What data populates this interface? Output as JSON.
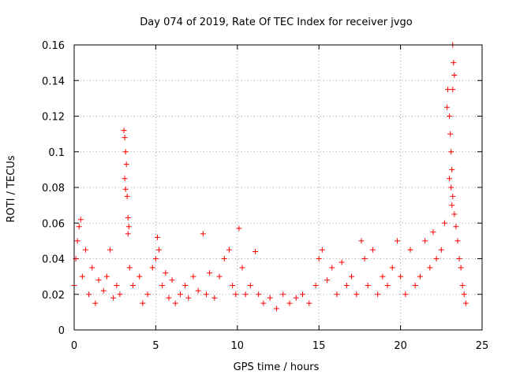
{
  "chart_data": {
    "type": "scatter",
    "title": "Day 074 of 2019, Rate Of TEC Index for receiver jvgo",
    "xlabel": "GPS time / hours",
    "ylabel": "ROTI / TECUs",
    "xlim": [
      0,
      25
    ],
    "ylim": [
      0,
      0.16
    ],
    "xticks": [
      0,
      5,
      10,
      15,
      20,
      25
    ],
    "xtick_labels": [
      "0",
      "5",
      "10",
      "15",
      "20",
      "25"
    ],
    "yticks": [
      0,
      0.02,
      0.04,
      0.06,
      0.08,
      0.1,
      0.12,
      0.14,
      0.16
    ],
    "ytick_labels": [
      "0",
      "0.02",
      "0.04",
      "0.06",
      "0.08",
      "0.1",
      "0.12",
      "0.14",
      "0.16"
    ],
    "grid": true,
    "marker": "+",
    "color": "#ff0000",
    "series": [
      {
        "name": "ROTI",
        "points": [
          [
            0.0,
            0.025
          ],
          [
            0.1,
            0.04
          ],
          [
            0.2,
            0.05
          ],
          [
            0.3,
            0.058
          ],
          [
            0.4,
            0.062
          ],
          [
            0.5,
            0.03
          ],
          [
            0.7,
            0.045
          ],
          [
            0.9,
            0.02
          ],
          [
            1.1,
            0.035
          ],
          [
            1.3,
            0.015
          ],
          [
            1.5,
            0.028
          ],
          [
            1.8,
            0.022
          ],
          [
            2.0,
            0.03
          ],
          [
            2.2,
            0.045
          ],
          [
            2.4,
            0.018
          ],
          [
            2.6,
            0.025
          ],
          [
            2.8,
            0.02
          ],
          [
            3.05,
            0.112
          ],
          [
            3.1,
            0.108
          ],
          [
            3.15,
            0.1
          ],
          [
            3.2,
            0.093
          ],
          [
            3.1,
            0.085
          ],
          [
            3.15,
            0.079
          ],
          [
            3.25,
            0.075
          ],
          [
            3.3,
            0.063
          ],
          [
            3.35,
            0.058
          ],
          [
            3.3,
            0.054
          ],
          [
            3.4,
            0.035
          ],
          [
            3.6,
            0.025
          ],
          [
            4.0,
            0.03
          ],
          [
            4.2,
            0.015
          ],
          [
            4.5,
            0.02
          ],
          [
            4.8,
            0.035
          ],
          [
            5.0,
            0.04
          ],
          [
            5.1,
            0.052
          ],
          [
            5.2,
            0.045
          ],
          [
            5.4,
            0.025
          ],
          [
            5.6,
            0.032
          ],
          [
            5.8,
            0.018
          ],
          [
            6.0,
            0.028
          ],
          [
            6.2,
            0.015
          ],
          [
            6.5,
            0.02
          ],
          [
            6.8,
            0.025
          ],
          [
            7.0,
            0.018
          ],
          [
            7.3,
            0.03
          ],
          [
            7.6,
            0.022
          ],
          [
            7.9,
            0.054
          ],
          [
            8.1,
            0.02
          ],
          [
            8.3,
            0.032
          ],
          [
            8.6,
            0.018
          ],
          [
            8.9,
            0.03
          ],
          [
            9.2,
            0.04
          ],
          [
            9.5,
            0.045
          ],
          [
            9.7,
            0.025
          ],
          [
            9.9,
            0.02
          ],
          [
            10.1,
            0.057
          ],
          [
            10.3,
            0.035
          ],
          [
            10.5,
            0.02
          ],
          [
            10.8,
            0.025
          ],
          [
            11.1,
            0.044
          ],
          [
            11.3,
            0.02
          ],
          [
            11.6,
            0.015
          ],
          [
            12.0,
            0.018
          ],
          [
            12.4,
            0.012
          ],
          [
            12.8,
            0.02
          ],
          [
            13.2,
            0.015
          ],
          [
            13.6,
            0.018
          ],
          [
            14.0,
            0.02
          ],
          [
            14.4,
            0.015
          ],
          [
            14.8,
            0.025
          ],
          [
            15.0,
            0.04
          ],
          [
            15.2,
            0.045
          ],
          [
            15.5,
            0.028
          ],
          [
            15.8,
            0.035
          ],
          [
            16.1,
            0.02
          ],
          [
            16.4,
            0.038
          ],
          [
            16.7,
            0.025
          ],
          [
            17.0,
            0.03
          ],
          [
            17.3,
            0.02
          ],
          [
            17.6,
            0.05
          ],
          [
            17.8,
            0.04
          ],
          [
            18.0,
            0.025
          ],
          [
            18.3,
            0.045
          ],
          [
            18.6,
            0.02
          ],
          [
            18.9,
            0.03
          ],
          [
            19.2,
            0.025
          ],
          [
            19.5,
            0.035
          ],
          [
            19.8,
            0.05
          ],
          [
            20.0,
            0.03
          ],
          [
            20.3,
            0.02
          ],
          [
            20.6,
            0.045
          ],
          [
            20.9,
            0.025
          ],
          [
            21.2,
            0.03
          ],
          [
            21.5,
            0.05
          ],
          [
            21.8,
            0.035
          ],
          [
            22.0,
            0.055
          ],
          [
            22.2,
            0.04
          ],
          [
            22.5,
            0.045
          ],
          [
            22.7,
            0.06
          ],
          [
            22.85,
            0.125
          ],
          [
            22.9,
            0.135
          ],
          [
            23.0,
            0.12
          ],
          [
            23.05,
            0.11
          ],
          [
            23.1,
            0.1
          ],
          [
            23.15,
            0.09
          ],
          [
            23.0,
            0.085
          ],
          [
            23.1,
            0.08
          ],
          [
            23.2,
            0.075
          ],
          [
            23.15,
            0.07
          ],
          [
            23.2,
            0.16
          ],
          [
            23.25,
            0.15
          ],
          [
            23.3,
            0.143
          ],
          [
            23.2,
            0.135
          ],
          [
            23.3,
            0.065
          ],
          [
            23.4,
            0.058
          ],
          [
            23.5,
            0.05
          ],
          [
            23.6,
            0.04
          ],
          [
            23.7,
            0.035
          ],
          [
            23.8,
            0.025
          ],
          [
            23.9,
            0.02
          ],
          [
            24.0,
            0.015
          ]
        ]
      }
    ]
  }
}
